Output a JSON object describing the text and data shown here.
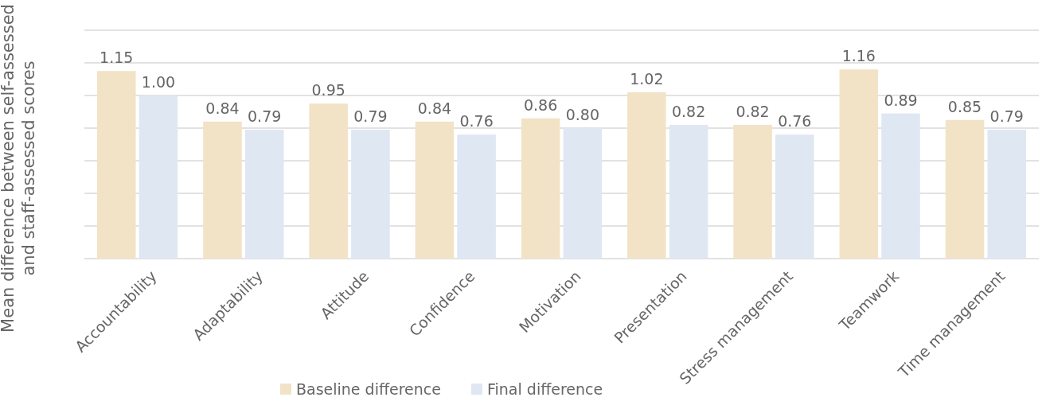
{
  "chart_data": {
    "type": "bar",
    "ylabel": "Mean difference between self-assessed\nand staff-assessed scores",
    "categories": [
      "Accountability",
      "Adaptability",
      "Attitude",
      "Confidence",
      "Motivation",
      "Presentation",
      "Stress management",
      "Teamwork",
      "Time management"
    ],
    "series": [
      {
        "name": "Baseline difference",
        "color": "#f2e3c6",
        "values": [
          1.15,
          0.84,
          0.95,
          0.84,
          0.86,
          1.02,
          0.82,
          1.16,
          0.85
        ],
        "value_labels": [
          "1.15",
          "0.84",
          "0.95",
          "0.84",
          "0.86",
          "1.02",
          "0.82",
          "1.16",
          "0.85"
        ]
      },
      {
        "name": "Final difference",
        "color": "#dfe7f3",
        "values": [
          1.0,
          0.79,
          0.79,
          0.76,
          0.8,
          0.82,
          0.76,
          0.89,
          0.79
        ],
        "value_labels": [
          "1.00",
          "0.79",
          "0.79",
          "0.76",
          "0.80",
          "0.82",
          "0.76",
          "0.89",
          "0.79"
        ]
      }
    ],
    "ylim": [
      0,
      1.4
    ],
    "yticks": [
      {
        "value": 0,
        "label": null
      },
      {
        "value": 0.2,
        "label": null
      },
      {
        "value": 0.4,
        "label": null
      },
      {
        "value": 0.6,
        "label": null
      },
      {
        "value": 0.8,
        "label": null
      },
      {
        "value": 1.0,
        "label": null
      },
      {
        "value": 1.2,
        "label": null
      },
      {
        "value": 1.4,
        "label": null
      }
    ],
    "grid": "y",
    "tick_labels": "x",
    "legend": "bottom"
  }
}
